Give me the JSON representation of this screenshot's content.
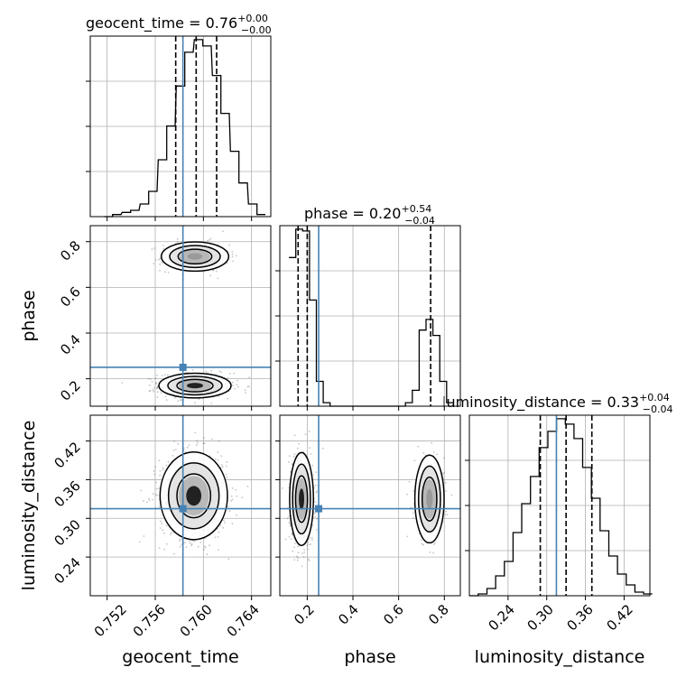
{
  "chart_data": {
    "type": "corner",
    "colors": {
      "truth": "#4682b4",
      "hist": "#000000",
      "grid": "#b0b0b0",
      "samples": "#555555"
    },
    "parameters": [
      {
        "name": "geocent_time",
        "label": "geocent_time",
        "truth": 0.7583,
        "quantiles": [
          0.7577,
          0.7594,
          0.7611
        ]
      },
      {
        "name": "phase",
        "label": "phase",
        "truth": 0.25,
        "quantiles": [
          0.16,
          0.2,
          0.74
        ]
      },
      {
        "name": "luminosity_distance",
        "label": "luminosity_distance",
        "truth": 0.315,
        "quantiles": [
          0.29,
          0.33,
          0.37
        ]
      }
    ],
    "titles": [
      {
        "text": "geocent_time = 0.76",
        "sup": "+0.00",
        "sub": "−0.00"
      },
      {
        "text": "phase = 0.20",
        "sup": "+0.54",
        "sub": "−0.04"
      },
      {
        "text": "luminosity_distance = 0.33",
        "sup": "+0.04",
        "sub": "−0.04"
      }
    ],
    "ranges": [
      [
        0.7506,
        0.7656
      ],
      [
        0.08,
        0.87
      ],
      [
        0.18,
        0.46
      ]
    ],
    "ticks": {
      "geocent_time": [
        "0.752",
        "0.756",
        "0.760",
        "0.764"
      ],
      "phase_x": [
        "0.2",
        "0.4",
        "0.6",
        "0.8"
      ],
      "phase_y": [
        "0.2",
        "0.4",
        "0.6",
        "0.8"
      ],
      "luminosity_distance_x": [
        "0.24",
        "0.30",
        "0.36",
        "0.42"
      ],
      "luminosity_distance_y": [
        "0.24",
        "0.30",
        "0.36",
        "0.42"
      ]
    },
    "histograms": {
      "geocent_time": {
        "x": [
          0.7521,
          0.7528,
          0.7536,
          0.7543,
          0.7551,
          0.7558,
          0.7566,
          0.7573,
          0.7581,
          0.7588,
          0.7596,
          0.7603,
          0.7611,
          0.7618,
          0.7626,
          0.7633,
          0.7641,
          0.7648
        ],
        "counts": [
          0,
          1,
          2,
          3,
          6,
          12,
          27,
          43,
          62,
          78,
          84,
          81,
          67,
          49,
          31,
          16,
          6,
          1
        ]
      },
      "phase": {
        "x": [
          0.135,
          0.165,
          0.195,
          0.225,
          0.255,
          0.285,
          0.315,
          0.345,
          0.375,
          0.405,
          0.435,
          0.465,
          0.495,
          0.525,
          0.555,
          0.585,
          0.615,
          0.645,
          0.675,
          0.705,
          0.735,
          0.765,
          0.795,
          0.825
        ],
        "counts": [
          84,
          100,
          99,
          60,
          14,
          2,
          0,
          0,
          0,
          0,
          0,
          0,
          0,
          0,
          0,
          0,
          0,
          2,
          9,
          43,
          49,
          40,
          14,
          2
        ]
      },
      "luminosity_distance": {
        "x": [
          0.187,
          0.2005,
          0.214,
          0.2275,
          0.241,
          0.2545,
          0.268,
          0.2815,
          0.295,
          0.3085,
          0.322,
          0.3355,
          0.349,
          0.3625,
          0.376,
          0.3895,
          0.403,
          0.4165,
          0.43,
          0.4435,
          0.457
        ],
        "counts": [
          0,
          1,
          4,
          11,
          19,
          35,
          51,
          66,
          82,
          91,
          98,
          95,
          87,
          71,
          54,
          36,
          22,
          12,
          6,
          2,
          1
        ]
      }
    },
    "clusters_2d": {
      "phase_vs_geocent_time": [
        {
          "cx": 0.7593,
          "cy": 0.17,
          "sx": 0.0015,
          "sy": 0.027,
          "weight": 0.72
        },
        {
          "cx": 0.7593,
          "cy": 0.735,
          "sx": 0.0014,
          "sy": 0.032,
          "weight": 0.28
        }
      ],
      "luminosity_distance_vs_geocent_time": [
        {
          "cx": 0.7592,
          "cy": 0.335,
          "sx": 0.0014,
          "sy": 0.034,
          "weight": 1.0
        }
      ],
      "luminosity_distance_vs_phase": [
        {
          "cx": 0.175,
          "cy": 0.33,
          "sx": 0.026,
          "sy": 0.036,
          "weight": 0.72
        },
        {
          "cx": 0.735,
          "cy": 0.33,
          "sx": 0.032,
          "sy": 0.034,
          "weight": 0.28
        }
      ]
    }
  }
}
